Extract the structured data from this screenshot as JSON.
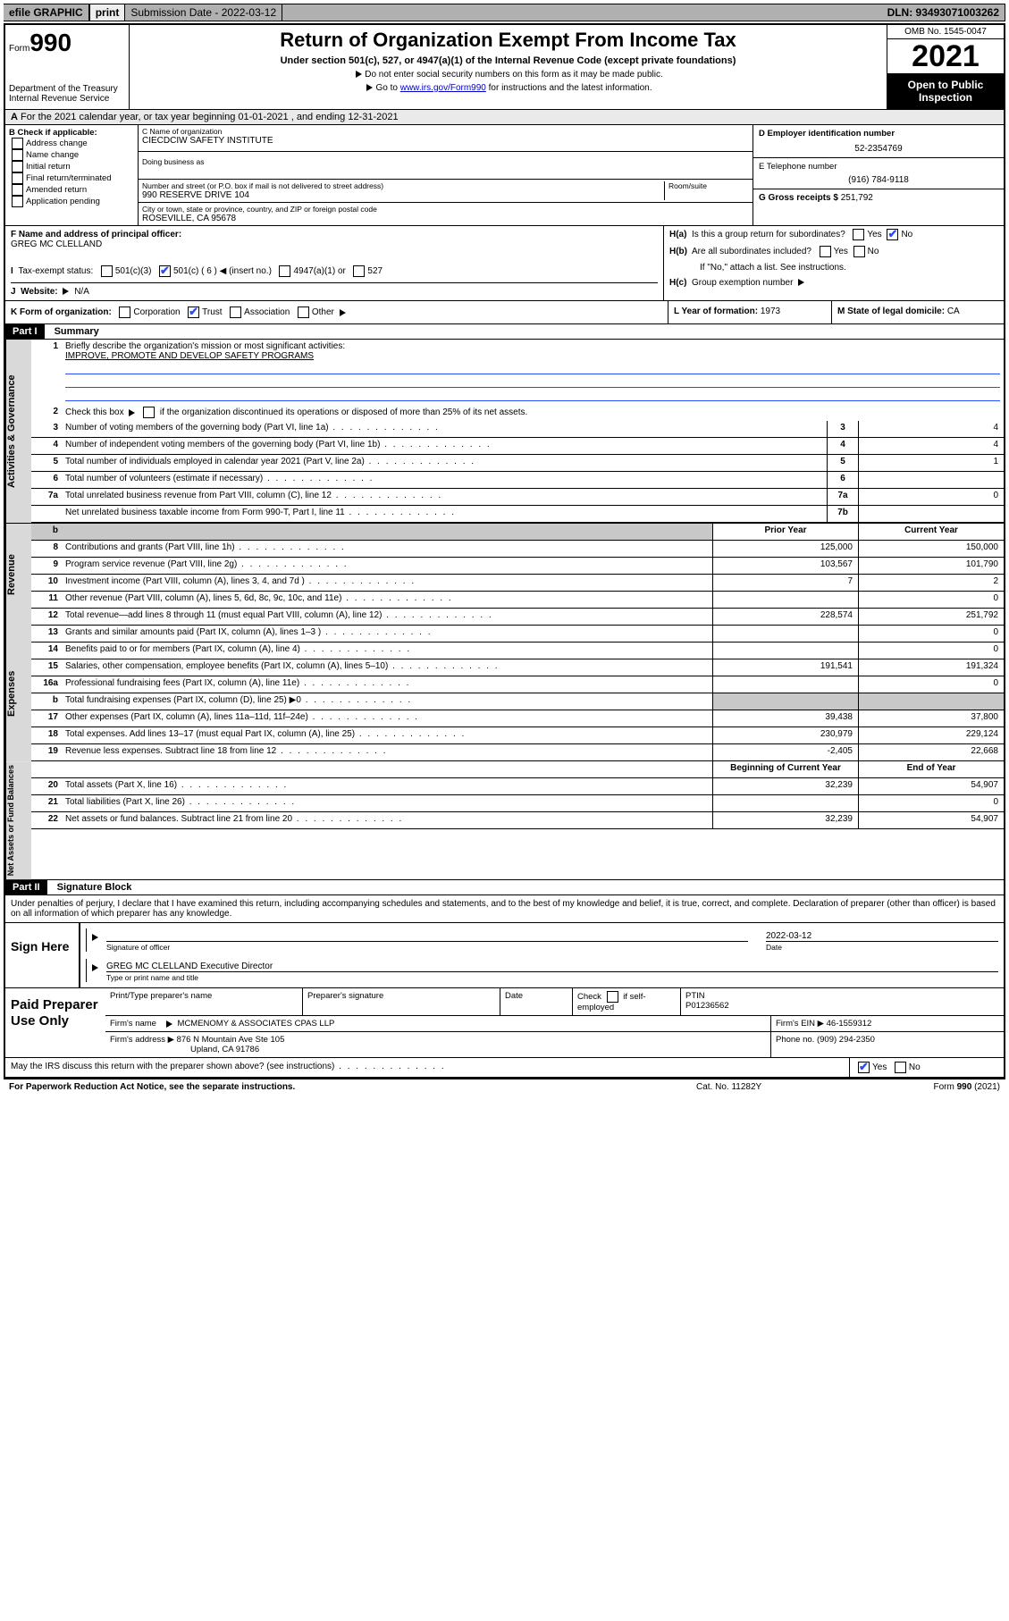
{
  "topbar": {
    "efile": "efile GRAPHIC",
    "print": "print",
    "subdate_lbl": "Submission Date - 2022-03-12",
    "dln": "DLN: 93493071003262"
  },
  "header": {
    "form_small": "Form",
    "form_big": "990",
    "title": "Return of Organization Exempt From Income Tax",
    "sub": "Under section 501(c), 527, or 4947(a)(1) of the Internal Revenue Code (except private foundations)",
    "note1": "Do not enter social security numbers on this form as it may be made public.",
    "note2_pre": "Go to ",
    "note2_link": "www.irs.gov/Form990",
    "note2_post": " for instructions and the latest information.",
    "dept": "Department of the Treasury",
    "irs": "Internal Revenue Service",
    "omb": "OMB No. 1545-0047",
    "year": "2021",
    "open": "Open to Public Inspection"
  },
  "A": {
    "text": "For the 2021 calendar year, or tax year beginning 01-01-2021   , and ending 12-31-2021"
  },
  "B": {
    "label": "B Check if applicable:",
    "opts": [
      "Address change",
      "Name change",
      "Initial return",
      "Final return/terminated",
      "Amended return",
      "Application pending"
    ]
  },
  "C": {
    "name_lbl": "C Name of organization",
    "name": "CIECDCIW SAFETY INSTITUTE",
    "dba_lbl": "Doing business as",
    "street_lbl": "Number and street (or P.O. box if mail is not delivered to street address)",
    "room_lbl": "Room/suite",
    "street": "990 RESERVE DRIVE 104",
    "city_lbl": "City or town, state or province, country, and ZIP or foreign postal code",
    "city": "ROSEVILLE, CA  95678"
  },
  "D": {
    "lbl": "D Employer identification number",
    "val": "52-2354769"
  },
  "E": {
    "lbl": "E Telephone number",
    "val": "(916) 784-9118"
  },
  "G": {
    "lbl": "G Gross receipts $",
    "val": "251,792"
  },
  "F": {
    "lbl": "F  Name and address of principal officer:",
    "name": "GREG MC CLELLAND"
  },
  "H": {
    "a": "Is this a group return for subordinates?",
    "a_yes": "Yes",
    "a_no": "No",
    "b": "Are all subordinates included?",
    "b_note": "If \"No,\" attach a list. See instructions.",
    "c": "Group exemption number"
  },
  "I": {
    "lbl": "Tax-exempt status:",
    "o1": "501(c)(3)",
    "o2": "501(c) ( 6 )",
    "o2_note": "(insert no.)",
    "o3": "4947(a)(1) or",
    "o4": "527"
  },
  "J": {
    "lbl": "Website:",
    "val": "N/A"
  },
  "K": {
    "lbl": "K Form of organization:",
    "o1": "Corporation",
    "o2": "Trust",
    "o3": "Association",
    "o4": "Other"
  },
  "L": {
    "lbl": "L Year of formation:",
    "val": "1973"
  },
  "M": {
    "lbl": "M State of legal domicile:",
    "val": "CA"
  },
  "part1": {
    "title": "Part I",
    "name": "Summary",
    "l1": "Briefly describe the organization's mission or most significant activities:",
    "l1v": "IMPROVE, PROMOTE AND DEVELOP SAFETY PROGRAMS",
    "l2": "Check this box ▶       if the organization discontinued its operations or disposed of more than 25% of its net assets.",
    "lines_gov": [
      {
        "n": "3",
        "t": "Number of voting members of the governing body (Part VI, line 1a)",
        "box": "3",
        "v": "4"
      },
      {
        "n": "4",
        "t": "Number of independent voting members of the governing body (Part VI, line 1b)",
        "box": "4",
        "v": "4"
      },
      {
        "n": "5",
        "t": "Total number of individuals employed in calendar year 2021 (Part V, line 2a)",
        "box": "5",
        "v": "1"
      },
      {
        "n": "6",
        "t": "Total number of volunteers (estimate if necessary)",
        "box": "6",
        "v": ""
      },
      {
        "n": "7a",
        "t": "Total unrelated business revenue from Part VIII, column (C), line 12",
        "box": "7a",
        "v": "0"
      },
      {
        "n": "",
        "t": "Net unrelated business taxable income from Form 990-T, Part I, line 11",
        "box": "7b",
        "v": ""
      }
    ],
    "col_prior": "Prior Year",
    "col_curr": "Current Year",
    "rev": [
      {
        "n": "8",
        "t": "Contributions and grants (Part VIII, line 1h)",
        "p": "125,000",
        "c": "150,000"
      },
      {
        "n": "9",
        "t": "Program service revenue (Part VIII, line 2g)",
        "p": "103,567",
        "c": "101,790"
      },
      {
        "n": "10",
        "t": "Investment income (Part VIII, column (A), lines 3, 4, and 7d )",
        "p": "7",
        "c": "2"
      },
      {
        "n": "11",
        "t": "Other revenue (Part VIII, column (A), lines 5, 6d, 8c, 9c, 10c, and 11e)",
        "p": "",
        "c": "0"
      },
      {
        "n": "12",
        "t": "Total revenue—add lines 8 through 11 (must equal Part VIII, column (A), line 12)",
        "p": "228,574",
        "c": "251,792"
      }
    ],
    "exp": [
      {
        "n": "13",
        "t": "Grants and similar amounts paid (Part IX, column (A), lines 1–3 )",
        "p": "",
        "c": "0"
      },
      {
        "n": "14",
        "t": "Benefits paid to or for members (Part IX, column (A), line 4)",
        "p": "",
        "c": "0"
      },
      {
        "n": "15",
        "t": "Salaries, other compensation, employee benefits (Part IX, column (A), lines 5–10)",
        "p": "191,541",
        "c": "191,324"
      },
      {
        "n": "16a",
        "t": "Professional fundraising fees (Part IX, column (A), line 11e)",
        "p": "",
        "c": "0"
      },
      {
        "n": "b",
        "t": "Total fundraising expenses (Part IX, column (D), line 25) ▶0",
        "shadeP": true,
        "shadeC": true
      },
      {
        "n": "17",
        "t": "Other expenses (Part IX, column (A), lines 11a–11d, 11f–24e)",
        "p": "39,438",
        "c": "37,800"
      },
      {
        "n": "18",
        "t": "Total expenses. Add lines 13–17 (must equal Part IX, column (A), line 25)",
        "p": "230,979",
        "c": "229,124"
      },
      {
        "n": "19",
        "t": "Revenue less expenses. Subtract line 18 from line 12",
        "p": "-2,405",
        "c": "22,668"
      }
    ],
    "col_begin": "Beginning of Current Year",
    "col_end": "End of Year",
    "net": [
      {
        "n": "20",
        "t": "Total assets (Part X, line 16)",
        "p": "32,239",
        "c": "54,907"
      },
      {
        "n": "21",
        "t": "Total liabilities (Part X, line 26)",
        "p": "",
        "c": "0"
      },
      {
        "n": "22",
        "t": "Net assets or fund balances. Subtract line 21 from line 20",
        "p": "32,239",
        "c": "54,907"
      }
    ]
  },
  "part2": {
    "title": "Part II",
    "name": "Signature Block",
    "decl": "Under penalties of perjury, I declare that I have examined this return, including accompanying schedules and statements, and to the best of my knowledge and belief, it is true, correct, and complete. Declaration of preparer (other than officer) is based on all information of which preparer has any knowledge."
  },
  "sign": {
    "here": "Sign Here",
    "sig_lbl": "Signature of officer",
    "date_lbl": "Date",
    "date": "2022-03-12",
    "name": "GREG MC CLELLAND  Executive Director",
    "name_lbl": "Type or print name and title"
  },
  "paid": {
    "lbl": "Paid Preparer Use Only",
    "h1": "Print/Type preparer's name",
    "h2": "Preparer's signature",
    "h3": "Date",
    "h4a": "Check",
    "h4b": "if self-employed",
    "h5": "PTIN",
    "ptin": "P01236562",
    "firm_lbl": "Firm's name",
    "firm": "MCMENOMY & ASSOCIATES CPAS LLP",
    "ein_lbl": "Firm's EIN ▶",
    "ein": "46-1559312",
    "addr_lbl": "Firm's address ▶",
    "addr1": "876 N Mountain Ave Ste 105",
    "addr2": "Upland, CA  91786",
    "phone_lbl": "Phone no.",
    "phone": "(909) 294-2350"
  },
  "footer": {
    "discuss": "May the IRS discuss this return with the preparer shown above? (see instructions)",
    "yes": "Yes",
    "no": "No",
    "pra": "For Paperwork Reduction Act Notice, see the separate instructions.",
    "cat": "Cat. No. 11282Y",
    "form": "Form 990 (2021)"
  }
}
